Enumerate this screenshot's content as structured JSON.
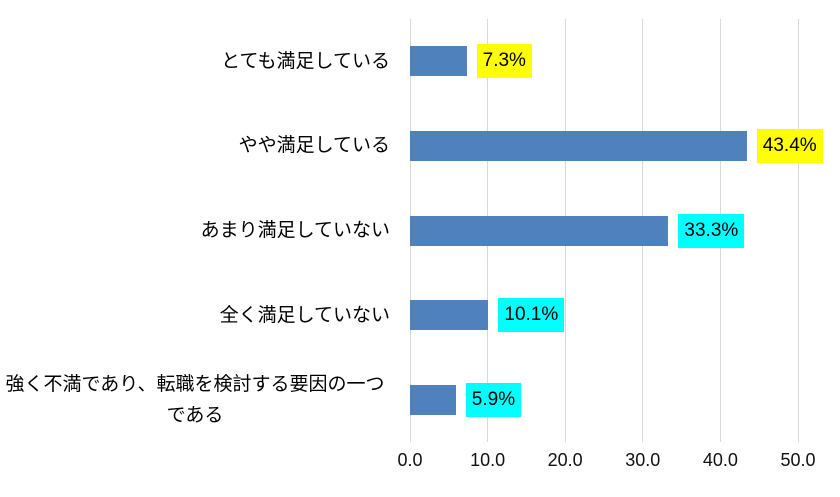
{
  "chart_data": {
    "type": "bar",
    "orientation": "horizontal",
    "title": "",
    "xlabel": "",
    "ylabel": "",
    "categories": [
      "とても満足している",
      "やや満足している",
      "あまり満足していない",
      "全く満足していない",
      "強く不満であり、転職を検討する要因の一つである"
    ],
    "values": [
      7.3,
      43.4,
      33.3,
      10.1,
      5.9
    ],
    "value_labels": [
      "7.3%",
      "43.4%",
      "33.3%",
      "10.1%",
      "5.9%"
    ],
    "value_label_highlight_colors": [
      "#FFFF00",
      "#FFFF00",
      "#00FFFF",
      "#00FFFF",
      "#00FFFF"
    ],
    "bar_color": "#4F81BD",
    "gridline_color": "#D9D9D9",
    "grid": "vertical",
    "legend_position": "none",
    "xlim": [
      0,
      50
    ],
    "x_tick_values": [
      0,
      10,
      20,
      30,
      40,
      50
    ],
    "x_tick_labels": [
      "0.0",
      "10.0",
      "20.0",
      "30.0",
      "40.0",
      "50.0"
    ]
  }
}
